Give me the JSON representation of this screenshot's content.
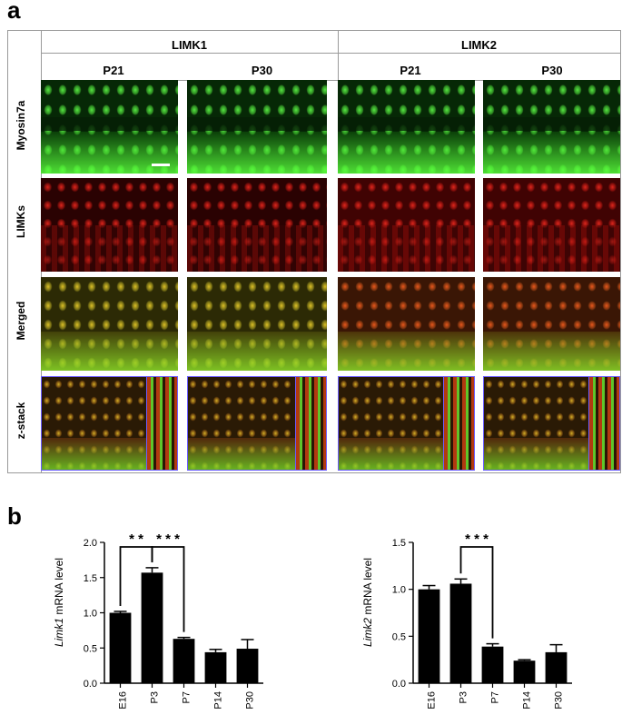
{
  "figure": {
    "panel_a_letter": "a",
    "panel_b_letter": "b",
    "groups": [
      "LIMK1",
      "LIMK2"
    ],
    "timepoints": [
      "P21",
      "P30",
      "P21",
      "P30"
    ],
    "rows": [
      "Myosin7a",
      "LIMKs",
      "Merged",
      "z-stack"
    ]
  },
  "chart_data": [
    {
      "type": "bar",
      "categories": [
        "E16",
        "P3",
        "P7",
        "P14",
        "P30"
      ],
      "values": [
        1.0,
        1.57,
        0.63,
        0.44,
        0.49
      ],
      "errors": [
        0.02,
        0.07,
        0.02,
        0.04,
        0.13
      ],
      "ylabel_gene": "Limk1",
      "ylabel_rest": " mRNA level",
      "ylim": [
        0,
        2.0
      ],
      "yticks": [
        "0.0",
        "0.5",
        "1.0",
        "1.5",
        "2.0"
      ],
      "significance": [
        {
          "from": "E16",
          "to": "P3",
          "label": "* *"
        },
        {
          "from": "P3",
          "to": "P7",
          "label": "* * *"
        }
      ]
    },
    {
      "type": "bar",
      "categories": [
        "E16",
        "P3",
        "P7",
        "P14",
        "P30"
      ],
      "values": [
        1.0,
        1.06,
        0.39,
        0.24,
        0.33
      ],
      "errors": [
        0.04,
        0.05,
        0.03,
        0.01,
        0.08
      ],
      "ylabel_gene": "Limk2",
      "ylabel_rest": " mRNA level",
      "ylim": [
        0,
        1.5
      ],
      "yticks": [
        "0.0",
        "0.5",
        "1.0",
        "1.5"
      ],
      "significance": [
        {
          "from": "P3",
          "to": "P7",
          "label": "* * *"
        }
      ]
    }
  ]
}
